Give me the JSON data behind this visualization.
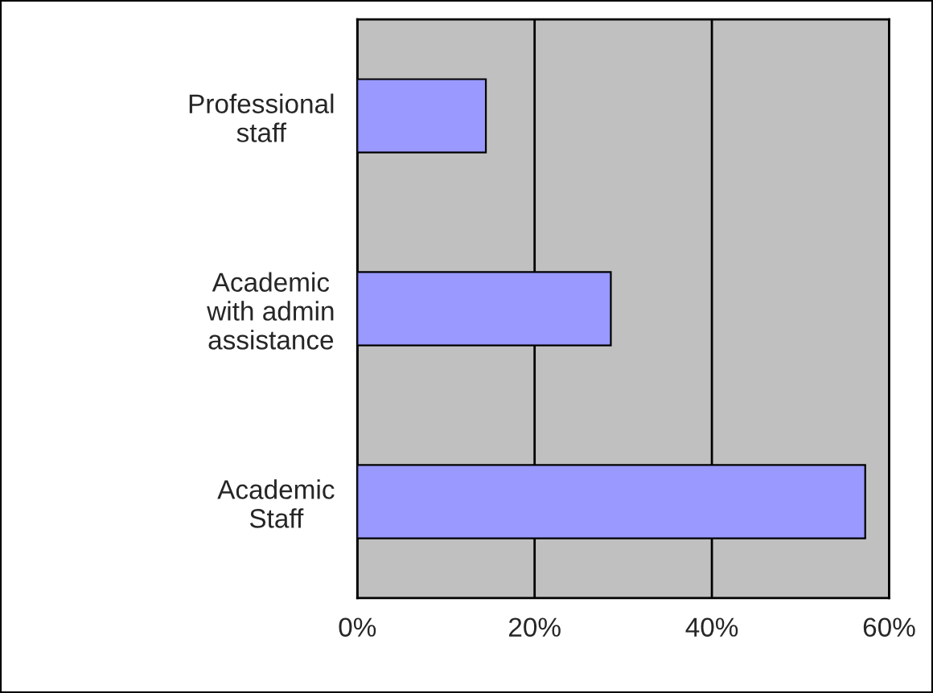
{
  "chart_data": {
    "type": "bar",
    "orientation": "horizontal",
    "categories": [
      "Professional\nstaff",
      "Academic\nwith admin\nassistance",
      "Academic\nStaff"
    ],
    "values": [
      14.5,
      28.6,
      57.3
    ],
    "color": "#9999ff",
    "xlim": [
      0,
      60
    ],
    "xticks": [
      {
        "value": 0,
        "label": "0%"
      },
      {
        "value": 20,
        "label": "20%"
      },
      {
        "value": 40,
        "label": "40%"
      },
      {
        "value": 60,
        "label": "60%"
      }
    ],
    "grid": "x",
    "legend": false
  }
}
